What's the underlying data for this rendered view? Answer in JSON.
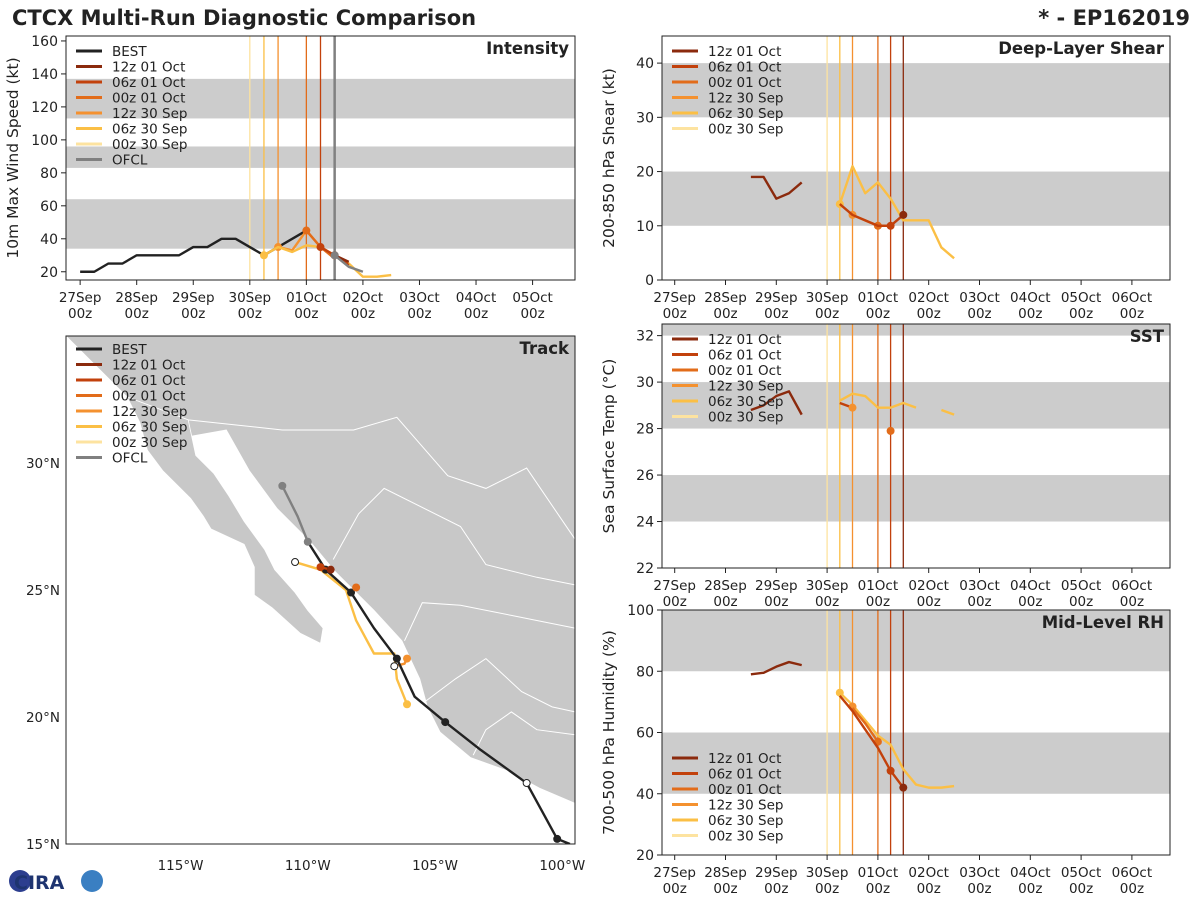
{
  "header": {
    "title": "CTCX Multi-Run Diagnostic Comparison",
    "storm": "* - EP162019"
  },
  "logo": {
    "text": "CIRA"
  },
  "colors": {
    "BEST": "#222222",
    "OFCL": "#808080",
    "12z 01 Oct": "#8b2a0d",
    "06z 01 Oct": "#c2410c",
    "00z 01 Oct": "#e26c1a",
    "12z 30 Sep": "#f4912f",
    "06z 30 Sep": "#fbbf45",
    "00z 30 Sep": "#fde3a0",
    "band": "#cccccc"
  },
  "time_ticks": [
    "27Sep\n00z",
    "28Sep\n00z",
    "29Sep\n00z",
    "30Sep\n00z",
    "01Oct\n00z",
    "02Oct\n00z",
    "03Oct\n00z",
    "04Oct\n00z",
    "05Oct\n00z",
    "06Oct\n00z"
  ],
  "init_times": [
    {
      "run": "00z 30 Sep",
      "day": 3.0
    },
    {
      "run": "06z 30 Sep",
      "day": 3.25
    },
    {
      "run": "12z 30 Sep",
      "day": 3.5
    },
    {
      "run": "00z 01 Oct",
      "day": 4.0
    },
    {
      "run": "06z 01 Oct",
      "day": 4.25
    },
    {
      "run": "12z 01 Oct",
      "day": 4.5
    }
  ],
  "chart_data": [
    {
      "id": "intensity",
      "type": "line",
      "label": "Intensity",
      "ylabel": "10m Max Wind Speed (kt)",
      "xlim": [
        -0.25,
        8.75
      ],
      "ylim": [
        15,
        163
      ],
      "yticks": [
        20,
        40,
        60,
        80,
        100,
        120,
        140,
        160
      ],
      "bands": [
        [
          34,
          64
        ],
        [
          83,
          96
        ],
        [
          113,
          137
        ]
      ],
      "legend": [
        "BEST",
        "12z 01 Oct",
        "06z 01 Oct",
        "00z 01 Oct",
        "12z 30 Sep",
        "06z 30 Sep",
        "00z 30 Sep",
        "OFCL"
      ],
      "init_lines": [
        "00z 30 Sep",
        "06z 30 Sep",
        "12z 30 Sep",
        "00z 01 Oct",
        "06z 01 Oct",
        "12z 01 Oct",
        "OFCL"
      ],
      "ofcl_day": 4.5,
      "series": [
        {
          "name": "BEST",
          "x": [
            0,
            0.25,
            0.5,
            0.75,
            1,
            1.25,
            1.5,
            1.75,
            2,
            2.25,
            2.5,
            2.75,
            3,
            3.25,
            3.5,
            3.75,
            4
          ],
          "y": [
            20,
            20,
            25,
            25,
            30,
            30,
            30,
            30,
            35,
            35,
            40,
            40,
            35,
            30,
            35,
            40,
            45
          ]
        },
        {
          "name": "12z 30 Sep",
          "x": [
            3.5,
            3.75,
            4,
            4.25
          ],
          "y": [
            35,
            33,
            45,
            35
          ],
          "marker_x": 3.5
        },
        {
          "name": "06z 30 Sep",
          "x": [
            3.25,
            3.5,
            3.75,
            4,
            4.25,
            4.5,
            4.75,
            5,
            5.25,
            5.5
          ],
          "y": [
            30,
            35,
            32,
            36,
            35,
            30,
            25,
            17,
            17,
            18
          ],
          "marker_x": 3.25
        },
        {
          "name": "00z 01 Oct",
          "x": [
            4,
            4.25,
            4.5
          ],
          "y": [
            45,
            35,
            28
          ],
          "marker_x": 4
        },
        {
          "name": "06z 01 Oct",
          "x": [
            4.25,
            4.5,
            4.75
          ],
          "y": [
            35,
            30,
            24
          ],
          "marker_x": 4.25
        },
        {
          "name": "12z 01 Oct",
          "x": [
            4.5,
            4.75
          ],
          "y": [
            30,
            26
          ],
          "marker_x": 4.5
        },
        {
          "name": "OFCL",
          "x": [
            4.5,
            4.75,
            5
          ],
          "y": [
            30,
            23,
            20
          ],
          "marker_x": 4.5
        }
      ]
    },
    {
      "id": "shear",
      "type": "line",
      "label": "Deep-Layer Shear",
      "ylabel": "200-850 hPa Shear (kt)",
      "xlim": [
        -0.25,
        9.75
      ],
      "ylim": [
        0,
        45
      ],
      "yticks": [
        0,
        10,
        20,
        30,
        40
      ],
      "bands": [
        [
          10,
          20
        ],
        [
          30,
          40
        ]
      ],
      "legend": [
        "12z 01 Oct",
        "06z 01 Oct",
        "00z 01 Oct",
        "12z 30 Sep",
        "06z 30 Sep",
        "00z 30 Sep"
      ],
      "init_lines": [
        "00z 30 Sep",
        "06z 30 Sep",
        "12z 30 Sep",
        "00z 01 Oct",
        "06z 01 Oct",
        "12z 01 Oct"
      ],
      "series": [
        {
          "name": "12z 01 Oct",
          "x": [
            1.5,
            1.75,
            2,
            2.25,
            2.5
          ],
          "y": [
            19,
            19,
            15,
            16,
            18
          ]
        },
        {
          "name": "06z 30 Sep",
          "x": [
            3.25,
            3.5,
            3.75,
            4,
            4.25,
            4.5,
            4.75,
            5,
            5.25,
            5.5
          ],
          "y": [
            14,
            21,
            16,
            18,
            15,
            11,
            11,
            11,
            6,
            4
          ],
          "marker_x": 3.25
        },
        {
          "name": "12z 30 Sep",
          "x": [
            3.5,
            3.75,
            4,
            4.25
          ],
          "y": [
            12,
            11,
            10,
            10
          ],
          "marker_x": 3.5
        },
        {
          "name": "00z 01 Oct",
          "x": [
            4,
            4.25
          ],
          "y": [
            10,
            10
          ],
          "marker_x": 4
        },
        {
          "name": "06z 01 Oct",
          "x": [
            3.25,
            3.5,
            3.75,
            4,
            4.25,
            4.5
          ],
          "y": [
            14,
            12,
            11,
            10,
            10,
            12
          ],
          "marker_x": 4.25
        },
        {
          "name": "12z 01 Oct",
          "x": [
            4.5
          ],
          "y": [
            12
          ],
          "marker_x": 4.5
        }
      ]
    },
    {
      "id": "sst",
      "type": "line",
      "label": "SST",
      "ylabel": "Sea Surface Temp (°C)",
      "xlim": [
        -0.25,
        9.75
      ],
      "ylim": [
        22,
        32.5
      ],
      "yticks": [
        22,
        24,
        26,
        28,
        30,
        32
      ],
      "bands": [
        [
          24,
          26
        ],
        [
          28,
          30
        ],
        [
          32,
          34
        ]
      ],
      "legend": [
        "12z 01 Oct",
        "06z 01 Oct",
        "00z 01 Oct",
        "12z 30 Sep",
        "06z 30 Sep",
        "00z 30 Sep"
      ],
      "init_lines": [
        "00z 30 Sep",
        "06z 30 Sep",
        "12z 30 Sep",
        "00z 01 Oct",
        "06z 01 Oct",
        "12z 01 Oct"
      ],
      "series": [
        {
          "name": "12z 01 Oct",
          "x": [
            1.5,
            1.75,
            2,
            2.25,
            2.5
          ],
          "y": [
            28.8,
            29.0,
            29.4,
            29.6,
            28.6
          ]
        },
        {
          "name": "06z 30 Sep",
          "x": [
            3.25,
            3.5,
            3.75,
            4,
            4.25,
            4.5,
            4.75
          ],
          "y": [
            29.2,
            29.5,
            29.4,
            28.9,
            28.9,
            29.1,
            28.9
          ]
        },
        {
          "name": "06z 30 Sep",
          "x": [
            5.25,
            5.5
          ],
          "y": [
            28.8,
            28.6
          ]
        },
        {
          "name": "06z 01 Oct",
          "x": [
            3.25,
            3.5
          ],
          "y": [
            29.1,
            28.9
          ]
        },
        {
          "name": "12z 30 Sep",
          "x": [
            3.5
          ],
          "y": [
            28.9
          ],
          "marker_x": 3.5
        },
        {
          "name": "00z 01 Oct",
          "x": [
            4.25
          ],
          "y": [
            27.9
          ],
          "marker_x": 4.25
        }
      ]
    },
    {
      "id": "rh",
      "type": "line",
      "label": "Mid-Level RH",
      "ylabel": "700-500 hPa Humidity (%)",
      "xlim": [
        -0.25,
        9.75
      ],
      "ylim": [
        20,
        100
      ],
      "yticks": [
        20,
        40,
        60,
        80,
        100
      ],
      "bands": [
        [
          40,
          60
        ],
        [
          80,
          100
        ]
      ],
      "legend": [
        "12z 01 Oct",
        "06z 01 Oct",
        "00z 01 Oct",
        "12z 30 Sep",
        "06z 30 Sep",
        "00z 30 Sep"
      ],
      "legend_pos": "bottom-left",
      "init_lines": [
        "00z 30 Sep",
        "06z 30 Sep",
        "12z 30 Sep",
        "00z 01 Oct",
        "06z 01 Oct",
        "12z 01 Oct"
      ],
      "series": [
        {
          "name": "12z 01 Oct",
          "x": [
            1.5,
            1.75,
            2,
            2.25,
            2.5
          ],
          "y": [
            79,
            79.5,
            81.5,
            83,
            82
          ]
        },
        {
          "name": "06z 30 Sep",
          "x": [
            3.25,
            3.5,
            3.75,
            4,
            4.25,
            4.5,
            4.75,
            5,
            5.25,
            5.5
          ],
          "y": [
            73,
            69,
            64,
            59,
            56,
            48,
            43,
            42,
            42,
            42.5
          ],
          "marker_x": 3.25
        },
        {
          "name": "12z 30 Sep",
          "x": [
            3.5
          ],
          "y": [
            68.5
          ],
          "marker_x": 3.5
        },
        {
          "name": "00z 01 Oct",
          "x": [
            3.5,
            3.75,
            4
          ],
          "y": [
            68,
            63,
            57
          ],
          "marker_x": 4
        },
        {
          "name": "06z 01 Oct",
          "x": [
            3.25,
            3.5,
            3.75,
            4,
            4.25,
            4.5
          ],
          "y": [
            72,
            67,
            61,
            55,
            47.5,
            42
          ],
          "marker_x": 4.25
        },
        {
          "name": "12z 01 Oct",
          "x": [
            4.5
          ],
          "y": [
            42
          ],
          "marker_x": 4.5
        }
      ]
    }
  ],
  "track": {
    "label": "Track",
    "lon_ticks": [
      "115°W",
      "110°W",
      "105°W",
      "100°W"
    ],
    "lat_ticks": [
      "15°N",
      "20°N",
      "25°N",
      "30°N"
    ],
    "lon_values": [
      -115,
      -110,
      -105,
      -100
    ],
    "lat_values": [
      15,
      20,
      25,
      30
    ],
    "lonlim": [
      -119.5,
      -99.5
    ],
    "latlim": [
      15,
      35
    ],
    "legend": [
      "BEST",
      "12z 01 Oct",
      "06z 01 Oct",
      "00z 01 Oct",
      "12z 30 Sep",
      "06z 30 Sep",
      "00z 30 Sep",
      "OFCL"
    ],
    "series": [
      {
        "name": "BEST",
        "lon": [
          -99.7,
          -100.2,
          -100.8,
          -101.4,
          -103.2,
          -104.6,
          -105.8,
          -106.5,
          -107.4,
          -108.3,
          -109.3,
          -110.0
        ],
        "lat": [
          15.0,
          15.2,
          16.3,
          17.4,
          18.7,
          19.8,
          20.8,
          22.3,
          23.5,
          24.9,
          25.8,
          26.9
        ],
        "open": [
          -101.4
        ],
        "filled": [
          -100.2,
          -104.6,
          -106.5,
          -108.3,
          -109.3
        ]
      },
      {
        "name": "OFCL",
        "lon": [
          -110.0,
          -110.4,
          -111.0
        ],
        "lat": [
          26.9,
          27.9,
          29.1
        ],
        "filled": [
          -110.0,
          -111.0
        ]
      },
      {
        "name": "06z 30 Sep",
        "lon": [
          -106.1,
          -106.5,
          -106.6,
          -107.4,
          -108.1,
          -108.5,
          -109.5,
          -110.5
        ],
        "lat": [
          20.5,
          21.5,
          22.5,
          22.5,
          23.8,
          25.0,
          25.8,
          26.1
        ],
        "filled": [
          -106.1
        ],
        "open": [
          -110.5
        ]
      },
      {
        "name": "12z 30 Sep",
        "lon": [
          -106.1,
          -106.2,
          -106.6
        ],
        "lat": [
          22.3,
          22.1,
          22.0
        ],
        "filled": [
          -106.1
        ],
        "open": [
          -106.6
        ]
      },
      {
        "name": "00z 01 Oct",
        "lon": [
          -108.1
        ],
        "lat": [
          25.1
        ],
        "filled": [
          -108.1
        ]
      },
      {
        "name": "06z 01 Oct",
        "lon": [
          -109.5,
          -109.1
        ],
        "lat": [
          25.9,
          25.8
        ],
        "filled": [
          -109.5
        ]
      },
      {
        "name": "12z 01 Oct",
        "lon": [
          -109.1
        ],
        "lat": [
          25.8
        ],
        "filled": [
          -109.1
        ]
      }
    ]
  }
}
